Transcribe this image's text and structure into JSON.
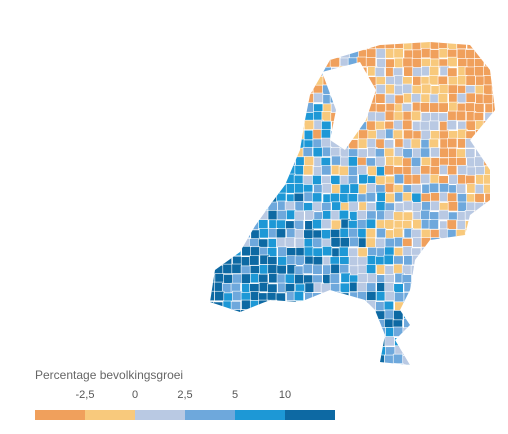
{
  "legend": {
    "title": "Percentage bevolkingsgroei",
    "ticks": [
      {
        "value": -2.5,
        "label": "-2,5"
      },
      0,
      {
        "value": 2.5,
        "label": "2,5"
      },
      5,
      10
    ],
    "colors": [
      "#f0a05c",
      "#f8c97c",
      "#b9c9e3",
      "#6ea8dc",
      "#1d98d6",
      "#0d69a3"
    ]
  }
}
